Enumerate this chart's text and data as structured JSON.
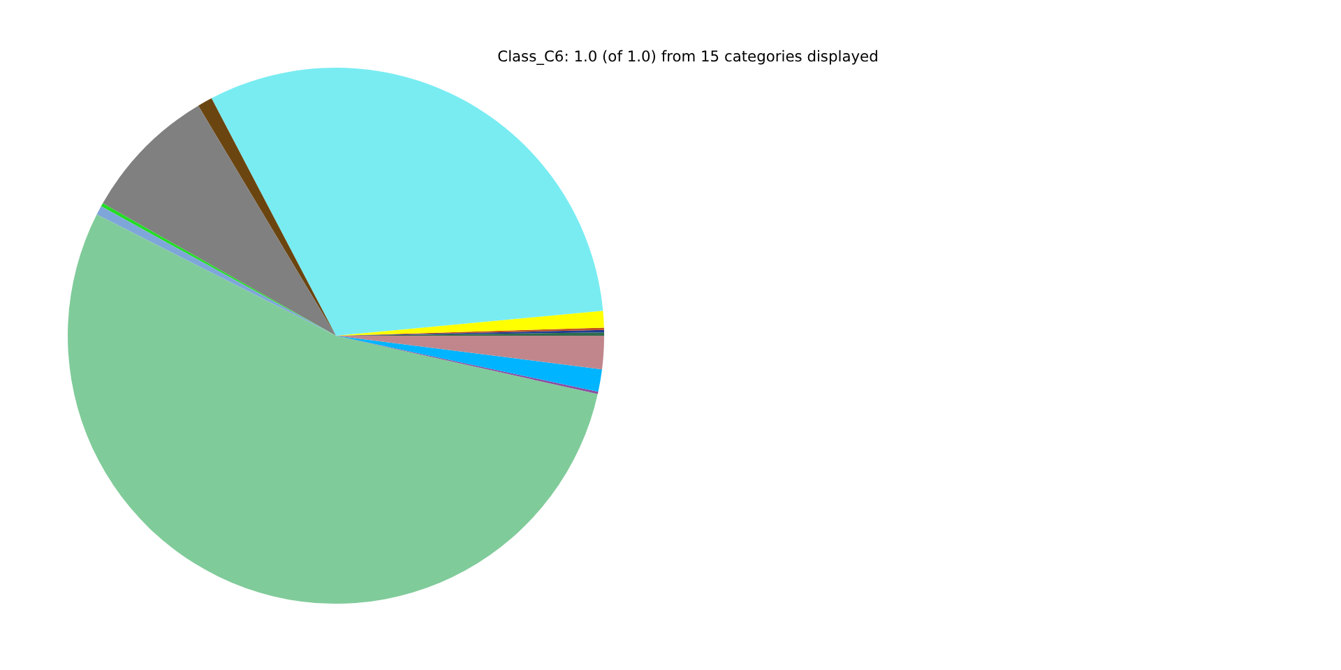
{
  "chart_data": {
    "type": "pie",
    "title": "Class_C6: 1.0 (of 1.0) from 15 categories displayed",
    "categories": [
      null,
      null,
      null,
      null,
      null,
      null,
      null,
      null,
      null,
      null,
      null,
      null,
      null
    ],
    "values": [
      0.2,
      0.14,
      0.14,
      1.0,
      31.2,
      0.9,
      8.2,
      0.2,
      0.55,
      53.98,
      0.14,
      1.35,
      2.0
    ],
    "colors": [
      "#2e6e4e",
      "#1f3a93",
      "#c05020",
      "#ffff00",
      "#79ecf2",
      "#6b4510",
      "#808080",
      "#22dd22",
      "#7fa6d9",
      "#80cb9a",
      "#8a4ea0",
      "#00b4ff",
      "#c0868c"
    ]
  }
}
